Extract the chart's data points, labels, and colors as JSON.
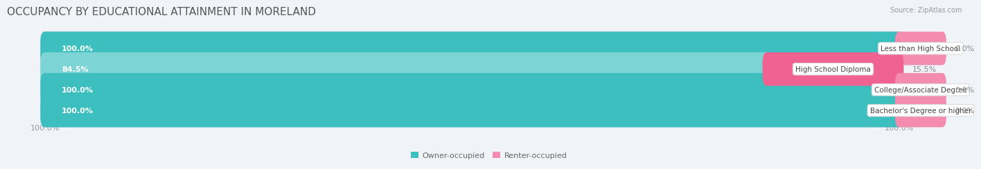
{
  "title": "OCCUPANCY BY EDUCATIONAL ATTAINMENT IN MORELAND",
  "source": "Source: ZipAtlas.com",
  "categories": [
    "Less than High School",
    "High School Diploma",
    "College/Associate Degree",
    "Bachelor's Degree or higher"
  ],
  "owner_values": [
    100.0,
    84.5,
    100.0,
    100.0
  ],
  "renter_values": [
    0.0,
    15.5,
    0.0,
    0.0
  ],
  "owner_color": "#3dbfbf",
  "renter_color": "#f48cb0",
  "renter_color_bright": "#f06292",
  "bg_color": "#f0f4f8",
  "bar_bg_color": "#e2eaf2",
  "bar_border_color": "#d0dae6",
  "title_fontsize": 11,
  "label_fontsize": 8,
  "source_fontsize": 7,
  "tick_fontsize": 8,
  "bar_height": 0.62,
  "min_renter_display": 5.0,
  "xlim": [
    0,
    100
  ]
}
